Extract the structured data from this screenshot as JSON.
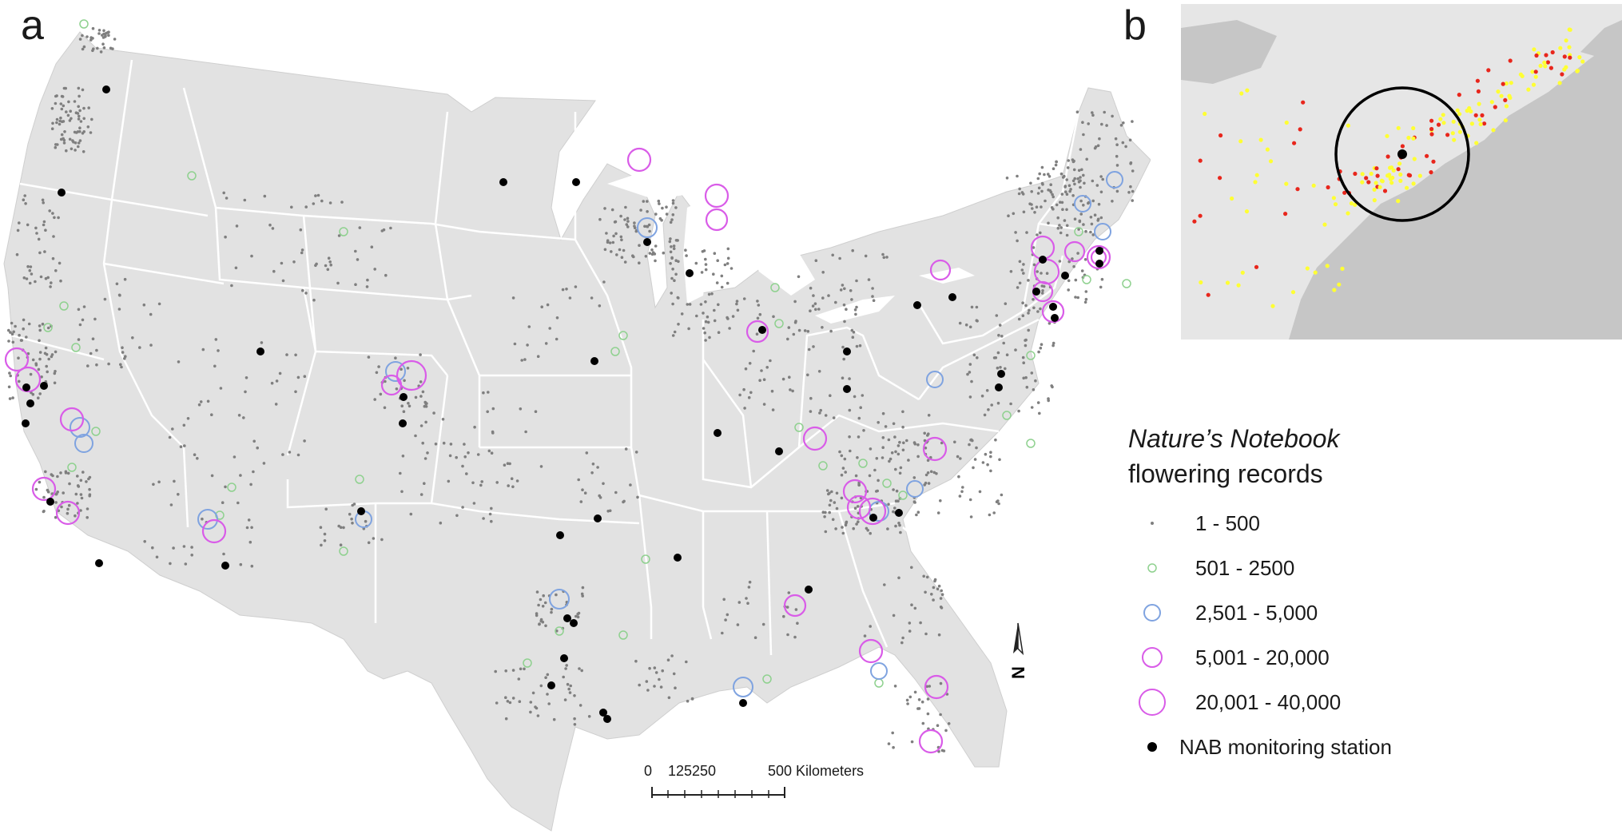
{
  "panels": {
    "a": "a",
    "b": "b"
  },
  "legend": {
    "title_italic": "Nature’s Notebook",
    "title_rest": "flowering records",
    "classes": [
      {
        "label": "1 - 500",
        "color": "#7f7f7f",
        "symbol": "dot"
      },
      {
        "label": "501 - 2500",
        "color": "#8fd18f",
        "symbol": "circle-small"
      },
      {
        "label": "2,501 - 5,000",
        "color": "#7fa3e0",
        "symbol": "circle-medium"
      },
      {
        "label": "5,001 - 20,000",
        "color": "#d95ce8",
        "symbol": "circle-large"
      },
      {
        "label": "20,001 - 40,000",
        "color": "#d95ce8",
        "symbol": "circle-xlarge"
      }
    ],
    "station": {
      "label": "NAB monitoring station",
      "color": "#000000"
    }
  },
  "scale_bar": {
    "labels": [
      "0",
      "125250",
      "500 Kilometers"
    ]
  },
  "north_arrow": {
    "letter": "N"
  },
  "colors": {
    "land": "#e2e2e2",
    "state_lines": "#ffffff",
    "inset_water": "#c6c6c6",
    "inset_land": "#e6e6e6",
    "inset_yellow": "#ffff33",
    "inset_red": "#e8261c"
  }
}
